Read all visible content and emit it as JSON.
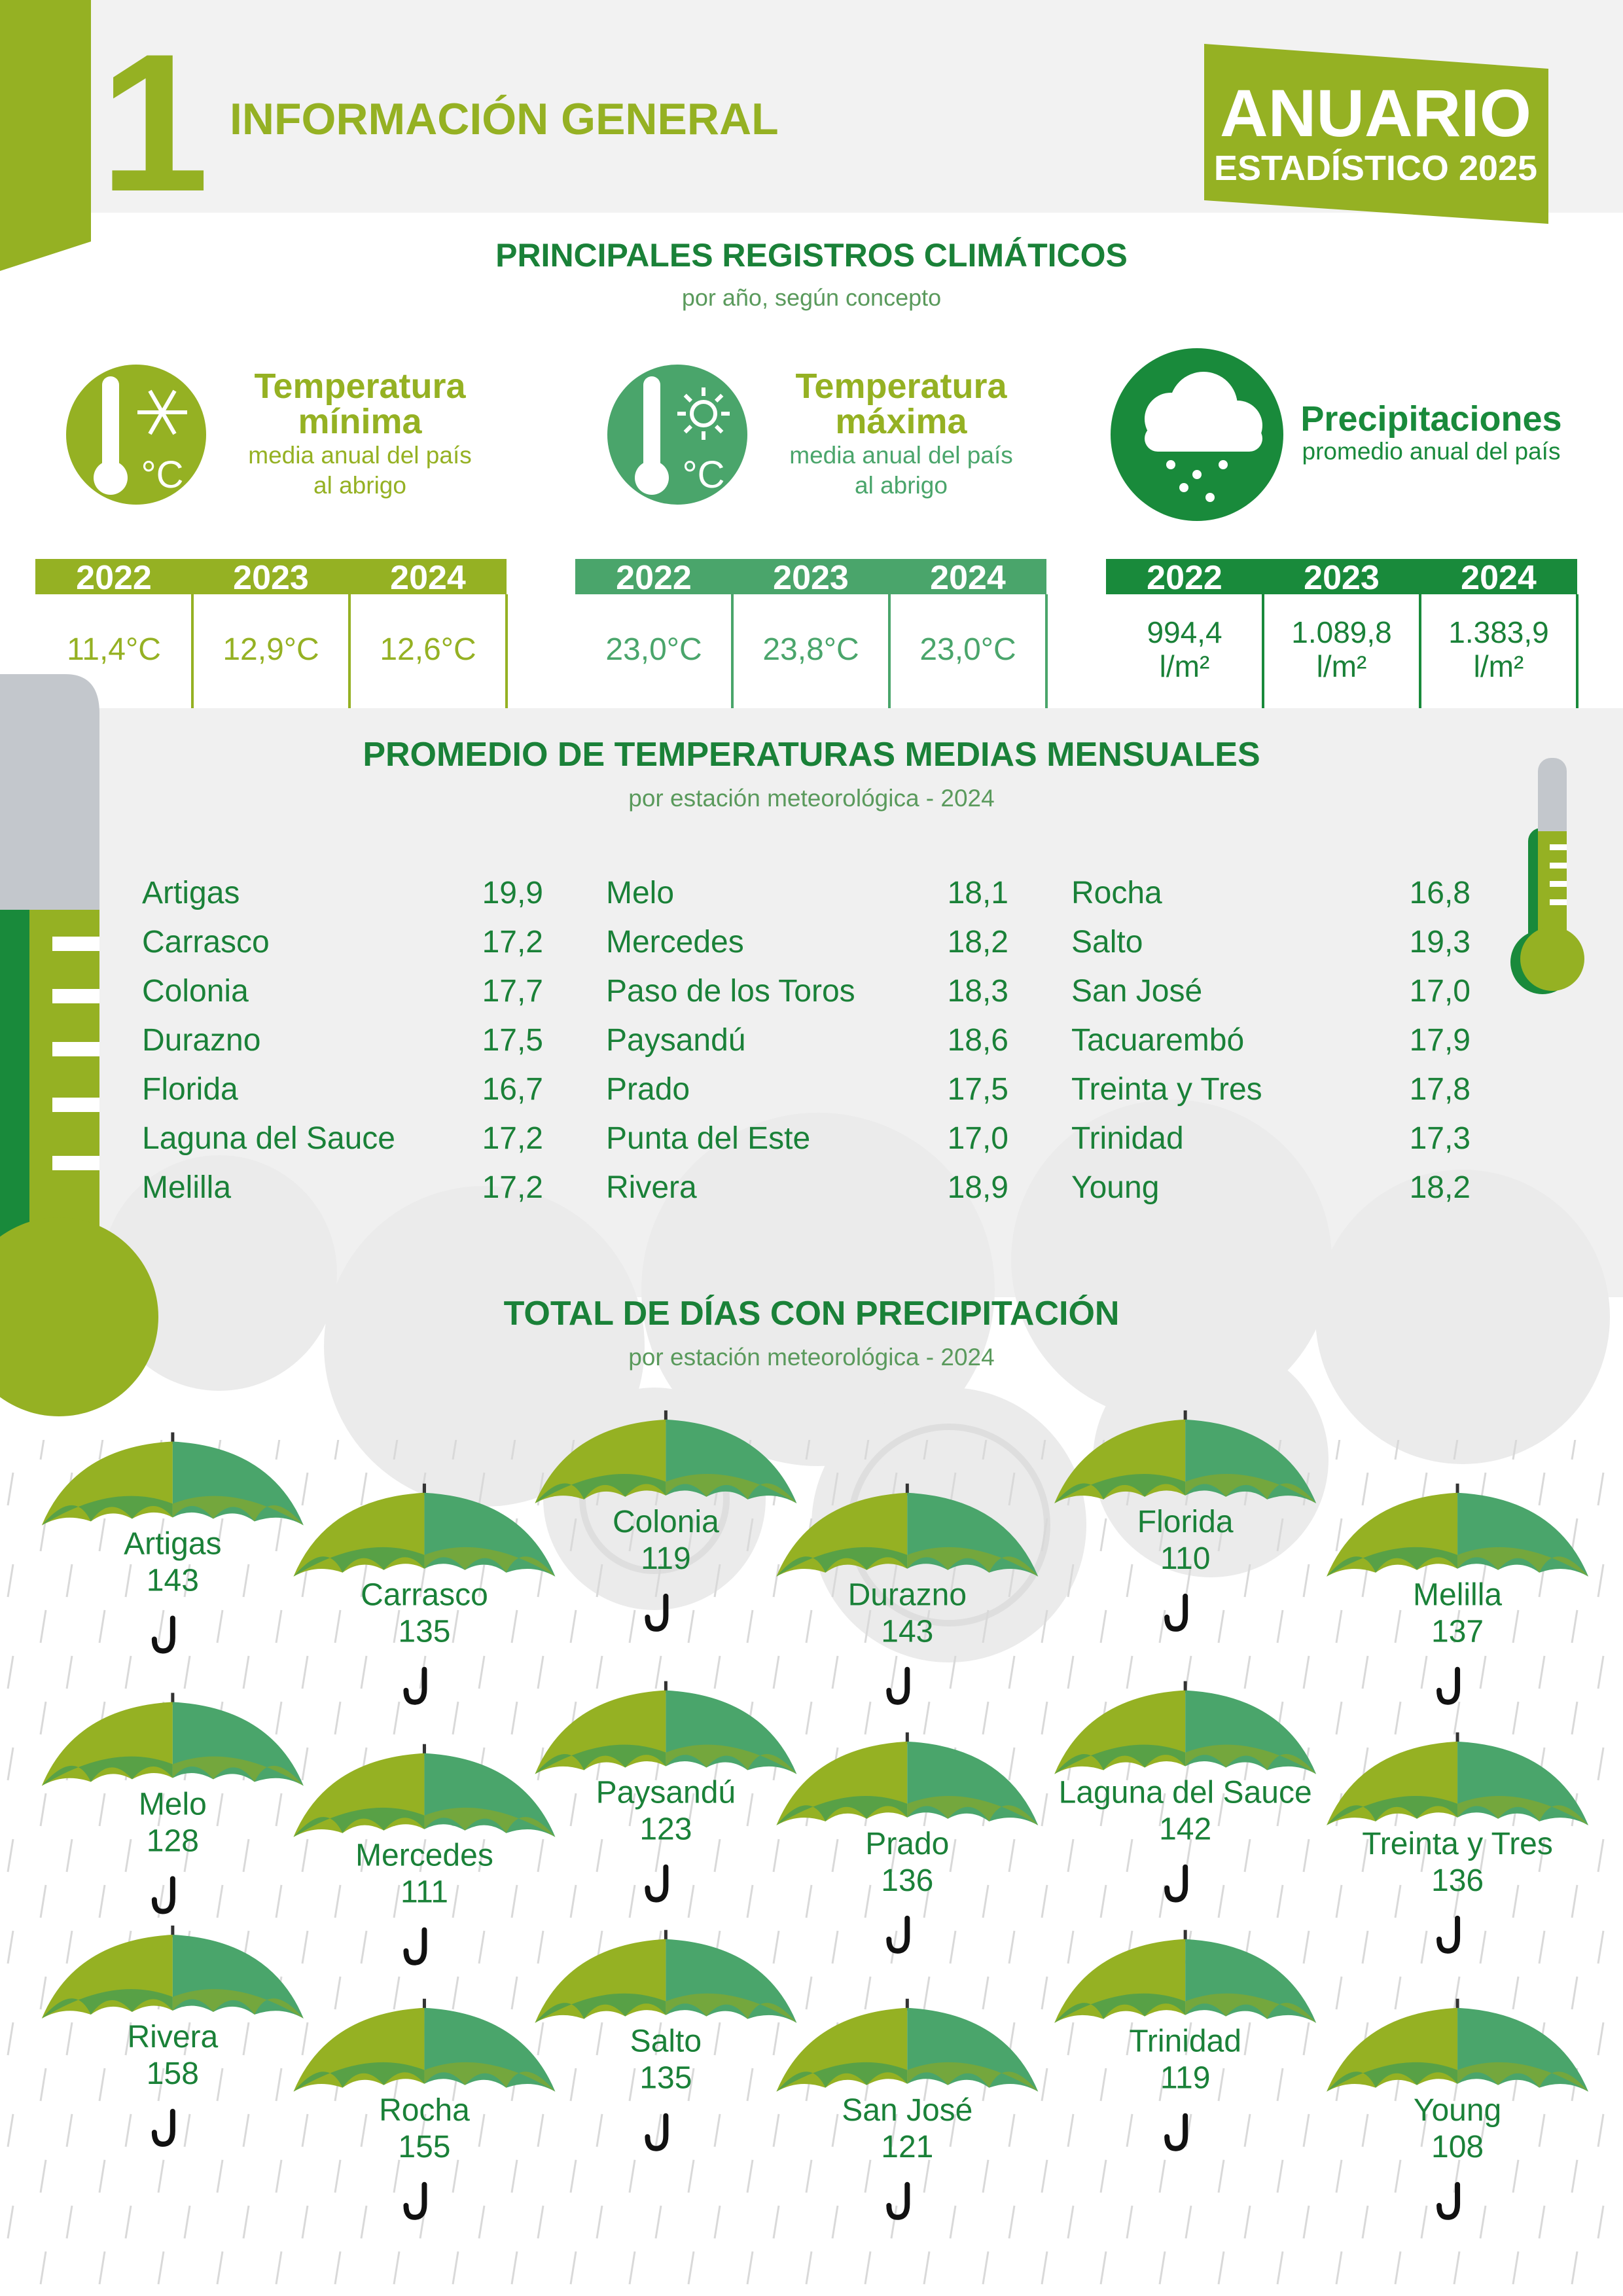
{
  "header": {
    "number": "1",
    "title": "INFORMACIÓN GENERAL",
    "badge_title": "ANUARIO",
    "badge_subtitle": "ESTADÍSTICO 2025"
  },
  "climate": {
    "title": "PRINCIPALES REGISTROS CLIMÁTICOS",
    "subtitle": "por año, según concepto",
    "groups": [
      {
        "title_lines": [
          "Temperatura",
          "mínima"
        ],
        "subtitle_lines": [
          "media anual del país",
          "al abrigo"
        ],
        "icon_text": "°C",
        "years": [
          "2022",
          "2023",
          "2024"
        ],
        "values": [
          "11,4°C",
          "12,9°C",
          "12,6°C"
        ]
      },
      {
        "title_lines": [
          "Temperatura",
          "máxima"
        ],
        "subtitle_lines": [
          "media anual del país",
          "al abrigo"
        ],
        "icon_text": "°C",
        "years": [
          "2022",
          "2023",
          "2024"
        ],
        "values": [
          "23,0°C",
          "23,8°C",
          "23,0°C"
        ]
      },
      {
        "title_lines": [
          "Precipitaciones"
        ],
        "subtitle_lines": [
          "promedio anual del país"
        ],
        "years": [
          "2022",
          "2023",
          "2024"
        ],
        "values": [
          {
            "value": "994,4",
            "unit": "l/m²"
          },
          {
            "value": "1.089,8",
            "unit": "l/m²"
          },
          {
            "value": "1.383,9",
            "unit": "l/m²"
          }
        ]
      }
    ]
  },
  "monthly": {
    "title": "PROMEDIO DE TEMPERATURAS MEDIAS MENSUALES",
    "subtitle": "por estación meteorológica - 2024",
    "columns": [
      [
        [
          "Artigas",
          "19,9"
        ],
        [
          "Carrasco",
          "17,2"
        ],
        [
          "Colonia",
          "17,7"
        ],
        [
          "Durazno",
          "17,5"
        ],
        [
          "Florida",
          "16,7"
        ],
        [
          "Laguna del Sauce",
          "17,2"
        ],
        [
          "Melilla",
          "17,2"
        ]
      ],
      [
        [
          "Melo",
          "18,1"
        ],
        [
          "Mercedes",
          "18,2"
        ],
        [
          "Paso de los Toros",
          "18,3"
        ],
        [
          "Paysandú",
          "18,6"
        ],
        [
          "Prado",
          "17,5"
        ],
        [
          "Punta del Este",
          "17,0"
        ],
        [
          "Rivera",
          "18,9"
        ]
      ],
      [
        [
          "Rocha",
          "16,8"
        ],
        [
          "Salto",
          "19,3"
        ],
        [
          "San José",
          "17,0"
        ],
        [
          "Tacuarembó",
          "17,9"
        ],
        [
          "Treinta y Tres",
          "17,8"
        ],
        [
          "Trinidad",
          "17,3"
        ],
        [
          "Young",
          "18,2"
        ]
      ]
    ]
  },
  "rain_days": {
    "title": "TOTAL DE DÍAS CON PRECIPITACIÓN",
    "subtitle": "por estación meteorológica - 2024",
    "stations": [
      {
        "name": "Artigas",
        "days": 143
      },
      {
        "name": "Carrasco",
        "days": 135
      },
      {
        "name": "Colonia",
        "days": 119
      },
      {
        "name": "Durazno",
        "days": 143
      },
      {
        "name": "Florida",
        "days": 110
      },
      {
        "name": "Melilla",
        "days": 137
      },
      {
        "name": "Melo",
        "days": 128
      },
      {
        "name": "Mercedes",
        "days": 111
      },
      {
        "name": "Paysandú",
        "days": 123
      },
      {
        "name": "Prado",
        "days": 136
      },
      {
        "name": "Laguna del Sauce",
        "days": 142
      },
      {
        "name": "Treinta y Tres",
        "days": 136
      },
      {
        "name": "Rivera",
        "days": 158
      },
      {
        "name": "Rocha",
        "days": 155
      },
      {
        "name": "Salto",
        "days": 135
      },
      {
        "name": "San José",
        "days": 121
      },
      {
        "name": "Trinidad",
        "days": 119
      },
      {
        "name": "Young",
        "days": 108
      }
    ]
  }
}
